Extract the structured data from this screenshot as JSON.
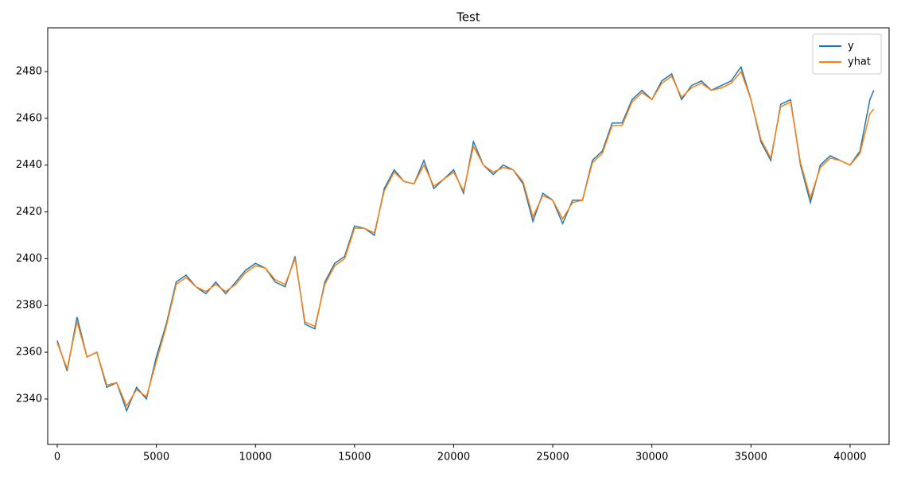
{
  "chart_data": {
    "type": "line",
    "title": "Test",
    "x": [
      0,
      500,
      1000,
      1500,
      2000,
      2500,
      3000,
      3500,
      4000,
      4500,
      5000,
      5500,
      6000,
      6500,
      7000,
      7500,
      8000,
      8500,
      9000,
      9500,
      10000,
      10500,
      11000,
      11500,
      12000,
      12500,
      13000,
      13500,
      14000,
      14500,
      15000,
      15500,
      16000,
      16500,
      17000,
      17500,
      18000,
      18500,
      19000,
      19500,
      20000,
      20500,
      21000,
      21500,
      22000,
      22500,
      23000,
      23500,
      24000,
      24500,
      25000,
      25500,
      26000,
      26500,
      27000,
      27500,
      28000,
      28500,
      29000,
      29500,
      30000,
      30500,
      31000,
      31500,
      32000,
      32500,
      33000,
      33500,
      34000,
      34500,
      35000,
      35500,
      36000,
      36500,
      37000,
      37500,
      38000,
      38500,
      39000,
      39500,
      40000,
      40500,
      41000,
      41200
    ],
    "series": [
      {
        "name": "y",
        "color": "#1f77b4",
        "values": [
          2365,
          2352,
          2375,
          2358,
          2360,
          2345,
          2347,
          2335,
          2345,
          2340,
          2358,
          2372,
          2390,
          2393,
          2388,
          2385,
          2390,
          2385,
          2390,
          2395,
          2398,
          2396,
          2390,
          2388,
          2401,
          2372,
          2370,
          2390,
          2398,
          2401,
          2414,
          2413,
          2410,
          2430,
          2438,
          2433,
          2432,
          2442,
          2430,
          2434,
          2438,
          2428,
          2450,
          2440,
          2436,
          2440,
          2438,
          2432,
          2416,
          2428,
          2425,
          2415,
          2425,
          2425,
          2442,
          2446,
          2458,
          2458,
          2468,
          2472,
          2468,
          2476,
          2479,
          2468,
          2474,
          2476,
          2472,
          2474,
          2476,
          2482,
          2468,
          2450,
          2442,
          2466,
          2468,
          2440,
          2424,
          2440,
          2444,
          2442,
          2440,
          2446,
          2468,
          2472
        ]
      },
      {
        "name": "yhat",
        "color": "#ff7f0e",
        "values": [
          2364,
          2353,
          2373,
          2358,
          2360,
          2346,
          2347,
          2337,
          2344,
          2341,
          2356,
          2371,
          2389,
          2392,
          2388,
          2386,
          2389,
          2386,
          2389,
          2394,
          2397,
          2396,
          2391,
          2389,
          2400,
          2373,
          2371,
          2389,
          2397,
          2400,
          2413,
          2413,
          2411,
          2429,
          2437,
          2433,
          2432,
          2440,
          2431,
          2434,
          2437,
          2429,
          2448,
          2440,
          2437,
          2439,
          2438,
          2433,
          2418,
          2427,
          2425,
          2417,
          2424,
          2425,
          2441,
          2445,
          2457,
          2457,
          2467,
          2471,
          2468,
          2475,
          2478,
          2469,
          2473,
          2475,
          2472,
          2473,
          2475,
          2480,
          2468,
          2451,
          2443,
          2465,
          2467,
          2441,
          2426,
          2439,
          2443,
          2442,
          2440,
          2445,
          2462,
          2464
        ]
      }
    ],
    "xlim": [
      -480,
      41970
    ],
    "ylim": [
      2320.6,
      2498.7
    ],
    "xticks": [
      0,
      5000,
      10000,
      15000,
      20000,
      25000,
      30000,
      35000,
      40000
    ],
    "yticks": [
      2340,
      2360,
      2380,
      2400,
      2420,
      2440,
      2460,
      2480
    ],
    "legend": "upper right"
  }
}
